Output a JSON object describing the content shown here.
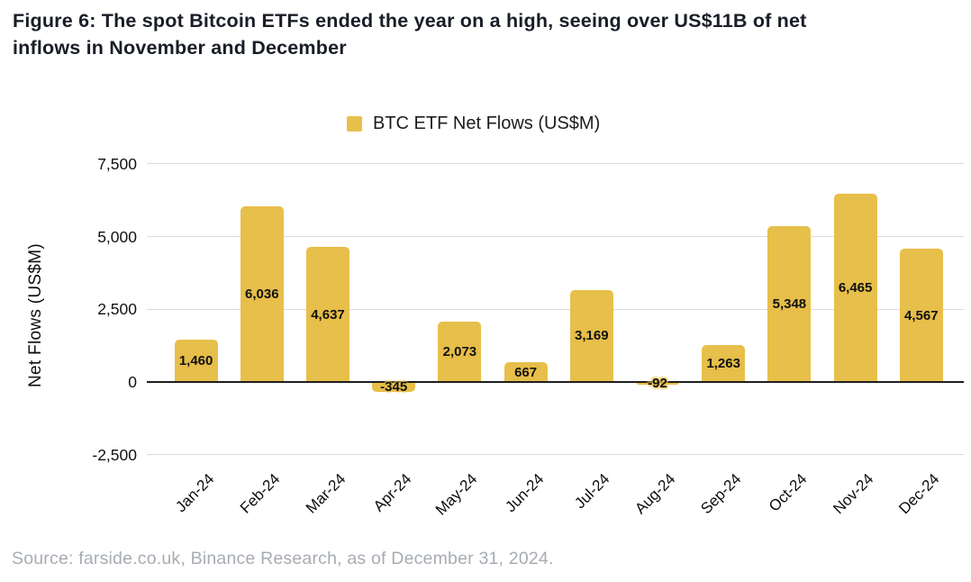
{
  "figure": {
    "title_line1": "Figure 6: The spot Bitcoin ETFs ended the year on a high, seeing over US$11B of net",
    "title_line2": "inflows in November and December",
    "source": "Source: farside.co.uk, Binance Research, as of December 31, 2024."
  },
  "chart_data": {
    "type": "bar",
    "legend_label": "BTC ETF Net Flows (US$M)",
    "legend_position": "top-center",
    "xlabel": "",
    "ylabel": "Net Flows (US$M)",
    "categories": [
      "Jan-24",
      "Feb-24",
      "Mar-24",
      "Apr-24",
      "May-24",
      "Jun-24",
      "Jul-24",
      "Aug-24",
      "Sep-24",
      "Oct-24",
      "Nov-24",
      "Dec-24"
    ],
    "values": [
      1460,
      6036,
      4637,
      -345,
      2073,
      667,
      3169,
      -92,
      1263,
      5348,
      6465,
      4567
    ],
    "value_labels": [
      "1,460",
      "6,036",
      "4,637",
      "-345",
      "2,073",
      "667",
      "3,169",
      "-92",
      "1,263",
      "5,348",
      "6,465",
      "4,567"
    ],
    "yticks": [
      {
        "value": 7500,
        "label": "7,500"
      },
      {
        "value": 5000,
        "label": "5,000"
      },
      {
        "value": 2500,
        "label": "2,500"
      },
      {
        "value": 0,
        "label": "0"
      },
      {
        "value": -2500,
        "label": "-2,500"
      }
    ],
    "ylim": [
      -2500,
      7500
    ],
    "grid": "horizontal",
    "colors": {
      "bar": "#E7BF4B",
      "grid": "#d9dbdd",
      "zero_line": "#1f1f1f",
      "data_label": "#111111",
      "axis_text": "#101010",
      "title_text": "#191d26",
      "source_text": "#a7acb3"
    }
  }
}
